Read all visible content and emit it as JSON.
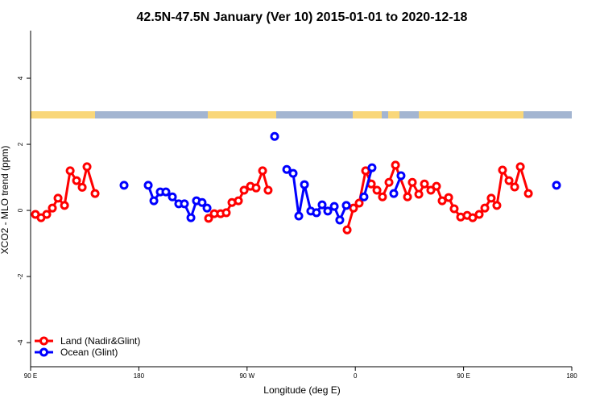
{
  "chart_data": {
    "type": "line",
    "title": "42.5N-47.5N January (Ver 10)   2015-01-01 to 2020-12-18",
    "x_label": "Longitude (deg E)",
    "y_label": "XCO2 - MLO trend (ppm)",
    "xlim": [
      90,
      540
    ],
    "ylim": [
      -4.73,
      5.44
    ],
    "xticks": [
      {
        "value": 90,
        "label": "90 E"
      },
      {
        "value": 180,
        "label": "180"
      },
      {
        "value": 270,
        "label": "90 W"
      },
      {
        "value": 360,
        "label": "0"
      },
      {
        "value": 450,
        "label": "90 E"
      },
      {
        "value": 540,
        "label": "180"
      }
    ],
    "yticks": [
      -4,
      -2,
      0,
      2,
      4
    ],
    "legend": "bottom-left",
    "series": [
      {
        "name": "Land (Nadir&Glint)",
        "color": "#ff0000",
        "x": [
          94,
          98.7,
          103.4,
          108.1,
          112.8,
          118.2,
          122.9,
          128.2,
          132.9,
          136.9,
          143.6,
          null,
          238,
          242.7,
          248,
          252.7,
          257.4,
          262.8,
          267.5,
          272.8,
          277.5,
          282.9,
          287.5,
          null,
          353.2,
          358.5,
          363.2,
          368.6,
          373.3,
          378,
          382.6,
          388,
          393.4,
          403.4,
          407.4,
          412.8,
          417.5,
          422.8,
          427.5,
          432.2,
          437.6,
          442.2,
          447.6,
          453,
          457.6,
          463,
          467.7,
          473,
          477.7,
          482.4,
          487.8,
          492.5,
          497.2,
          503.9
        ],
        "values": [
          -0.12,
          -0.22,
          -0.12,
          0.07,
          0.37,
          0.15,
          1.2,
          0.9,
          0.7,
          1.32,
          0.51,
          null,
          -0.24,
          -0.1,
          -0.1,
          -0.07,
          0.24,
          0.29,
          0.61,
          0.73,
          0.68,
          1.2,
          0.61,
          null,
          -0.59,
          0.07,
          0.22,
          1.2,
          0.8,
          0.61,
          0.41,
          0.85,
          1.37,
          0.41,
          0.85,
          0.49,
          0.8,
          0.61,
          0.73,
          0.29,
          0.39,
          0.05,
          -0.2,
          -0.15,
          -0.22,
          -0.12,
          0.07,
          0.37,
          0.15,
          1.22,
          0.9,
          0.71,
          1.32,
          0.51
        ]
      },
      {
        "name": "Ocean (Glint)",
        "color": "#0000ff",
        "x": [
          167.7,
          null,
          187.8,
          192.5,
          197.8,
          202.5,
          207.9,
          213.2,
          217.9,
          223.3,
          227.9,
          232.6,
          236.7,
          null,
          292.9,
          null,
          303,
          308.3,
          313,
          317.7,
          323,
          327.7,
          332.4,
          337.1,
          342.5,
          347.1,
          352.5,
          null,
          367.2,
          373.9,
          null,
          392,
          398,
          null,
          527.3
        ],
        "values": [
          0.76,
          null,
          0.76,
          0.29,
          0.56,
          0.56,
          0.41,
          0.2,
          0.2,
          -0.22,
          0.29,
          0.24,
          0.07,
          null,
          2.24,
          null,
          1.24,
          1.12,
          -0.17,
          0.78,
          -0.02,
          -0.07,
          0.17,
          -0.02,
          0.12,
          -0.29,
          0.15,
          null,
          0.41,
          1.29,
          null,
          0.51,
          1.05,
          null,
          0.76
        ]
      }
    ]
  }
}
